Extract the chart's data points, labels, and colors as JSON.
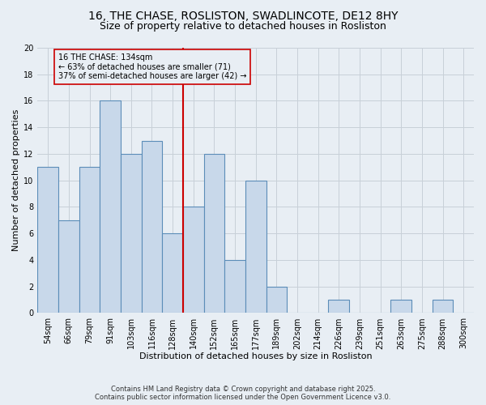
{
  "title": "16, THE CHASE, ROSLISTON, SWADLINCOTE, DE12 8HY",
  "subtitle": "Size of property relative to detached houses in Rosliston",
  "xlabel": "Distribution of detached houses by size in Rosliston",
  "ylabel": "Number of detached properties",
  "bin_labels": [
    "54sqm",
    "66sqm",
    "79sqm",
    "91sqm",
    "103sqm",
    "116sqm",
    "128sqm",
    "140sqm",
    "152sqm",
    "165sqm",
    "177sqm",
    "189sqm",
    "202sqm",
    "214sqm",
    "226sqm",
    "239sqm",
    "251sqm",
    "263sqm",
    "275sqm",
    "288sqm",
    "300sqm"
  ],
  "bar_heights": [
    11,
    7,
    11,
    16,
    12,
    13,
    6,
    8,
    12,
    4,
    10,
    2,
    0,
    0,
    1,
    0,
    0,
    1,
    0,
    1,
    0
  ],
  "bar_color": "#c8d8ea",
  "bar_edge_color": "#5b8db8",
  "reference_line_color": "#cc0000",
  "annotation_box_edge_color": "#cc0000",
  "annotation_text_line1": "16 THE CHASE: 134sqm",
  "annotation_text_line2": "← 63% of detached houses are smaller (71)",
  "annotation_text_line3": "37% of semi-detached houses are larger (42) →",
  "ylim": [
    0,
    20
  ],
  "yticks": [
    0,
    2,
    4,
    6,
    8,
    10,
    12,
    14,
    16,
    18,
    20
  ],
  "grid_color": "#c8d0d8",
  "bg_color": "#e8eef4",
  "footer1": "Contains HM Land Registry data © Crown copyright and database right 2025.",
  "footer2": "Contains public sector information licensed under the Open Government Licence v3.0.",
  "title_fontsize": 10,
  "subtitle_fontsize": 9,
  "axis_label_fontsize": 8,
  "tick_fontsize": 7,
  "annotation_fontsize": 7,
  "footer_fontsize": 6
}
